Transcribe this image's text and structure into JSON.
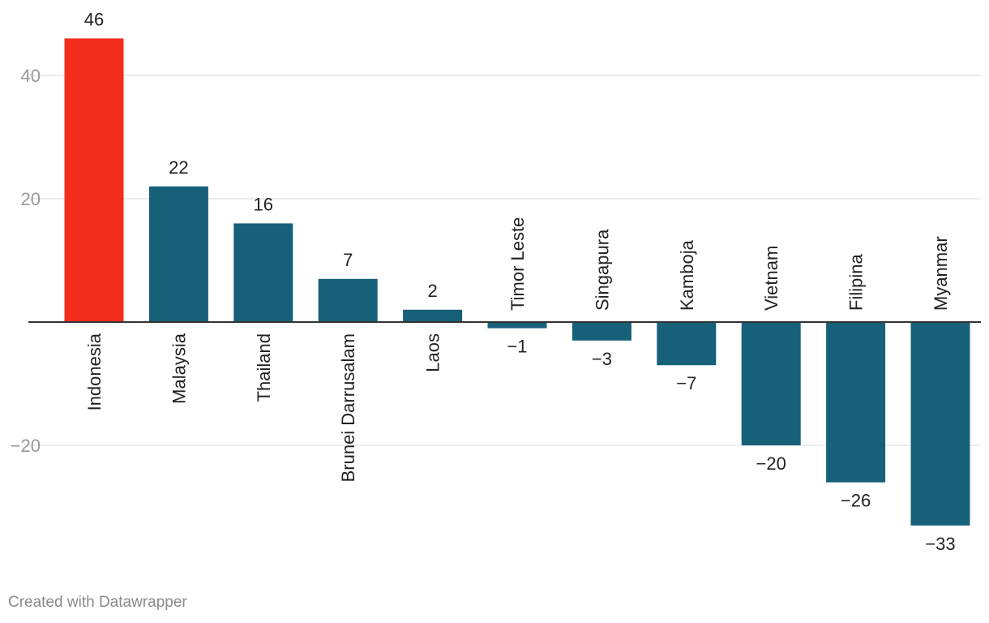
{
  "chart_data": {
    "type": "bar",
    "categories": [
      "Indonesia",
      "Malaysia",
      "Thailand",
      "Brunei Darrusalam",
      "Laos",
      "Timor Leste",
      "Singapura",
      "Kamboja",
      "Vietnam",
      "Filipina",
      "Myanmar"
    ],
    "values": [
      46,
      22,
      16,
      7,
      2,
      -1,
      -3,
      -7,
      -20,
      -26,
      -33
    ],
    "value_labels": [
      "46",
      "22",
      "16",
      "7",
      "2",
      "−1",
      "−3",
      "−7",
      "−20",
      "−26",
      "−33"
    ],
    "highlight_category": "Indonesia",
    "yticks": [
      40,
      20,
      -20
    ],
    "ytick_labels": [
      "40",
      "20",
      "−20"
    ],
    "ylim": [
      -40,
      46
    ],
    "grid": true,
    "colors": {
      "default_bar": "#17607a",
      "highlight_bar": "#f42c1d",
      "gridline": "#e0e0e0",
      "baseline": "#333333"
    }
  },
  "footer": {
    "credit": "Created with Datawrapper"
  }
}
